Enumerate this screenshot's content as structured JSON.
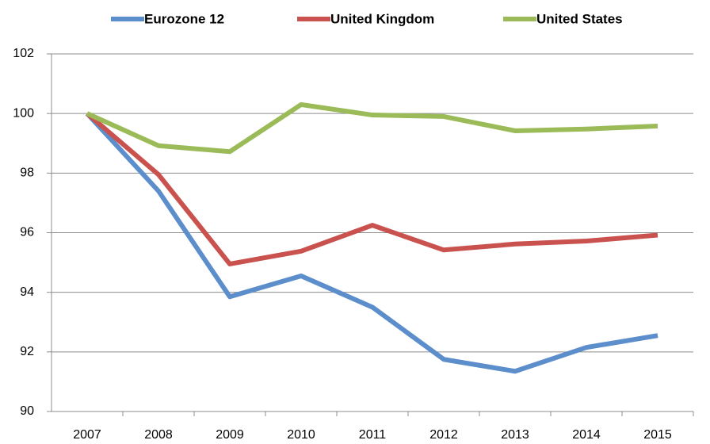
{
  "chart_data": {
    "type": "line",
    "categories": [
      "2007",
      "2008",
      "2009",
      "2010",
      "2011",
      "2012",
      "2013",
      "2014",
      "2015"
    ],
    "series": [
      {
        "name": "Eurozone 12",
        "color": "#5b8ecb",
        "values": [
          100,
          97.4,
          93.85,
          94.55,
          93.5,
          91.75,
          91.35,
          92.15,
          92.55
        ]
      },
      {
        "name": "United Kingdom",
        "color": "#c9524f",
        "values": [
          100,
          97.95,
          94.95,
          95.38,
          96.25,
          95.42,
          95.62,
          95.72,
          95.92
        ]
      },
      {
        "name": "United States",
        "color": "#9bbb59",
        "values": [
          100,
          98.92,
          98.72,
          100.3,
          99.95,
          99.9,
          99.42,
          99.48,
          99.58
        ]
      }
    ],
    "ylim": [
      90,
      102
    ],
    "yticks": [
      90,
      92,
      94,
      96,
      98,
      100,
      102
    ],
    "grid": true,
    "legend": "top"
  }
}
